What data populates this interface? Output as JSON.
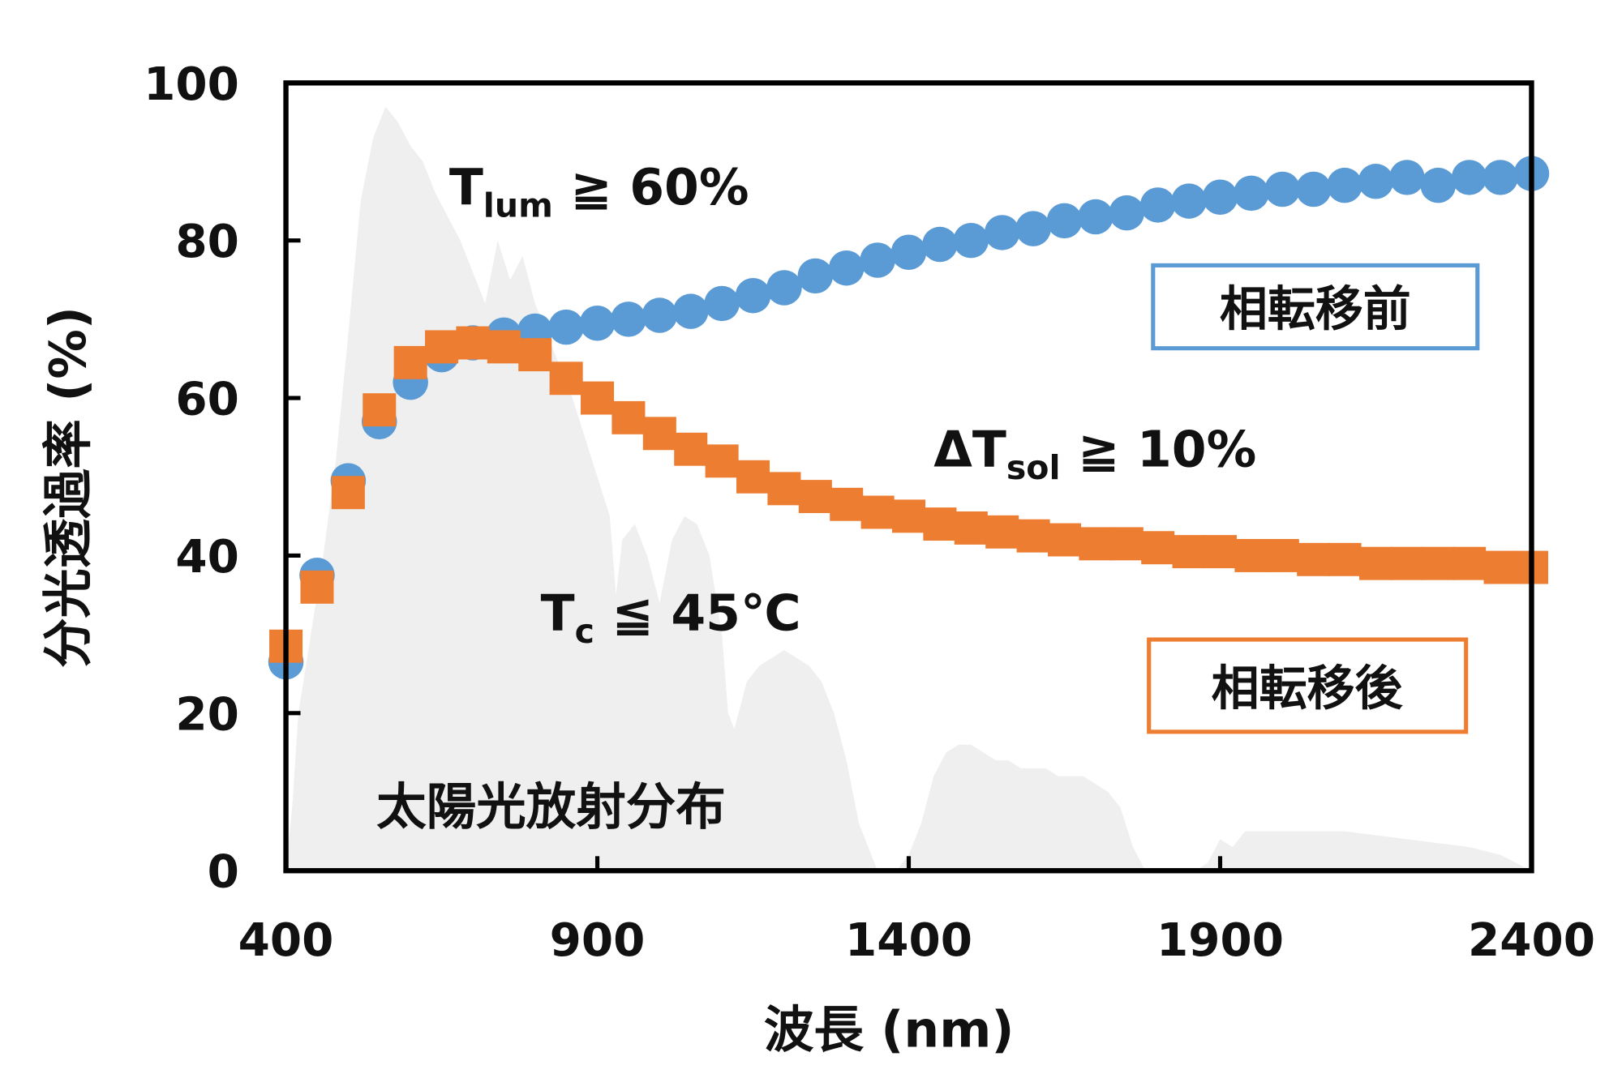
{
  "chart_data": {
    "type": "scatter",
    "xlabel": "波長 (nm)",
    "ylabel": "分光透過率 (%)",
    "xlim": [
      400,
      2400
    ],
    "ylim": [
      0,
      100
    ],
    "xticks": [
      400,
      900,
      1400,
      1900,
      2400
    ],
    "yticks": [
      0,
      20,
      40,
      60,
      80,
      100
    ],
    "grid": false,
    "colors": {
      "before": "#5b9bd5",
      "after": "#ed7d31",
      "solar": "#efefef"
    },
    "x": [
      400,
      450,
      500,
      550,
      600,
      650,
      700,
      750,
      800,
      850,
      900,
      950,
      1000,
      1050,
      1100,
      1150,
      1200,
      1250,
      1300,
      1350,
      1400,
      1450,
      1500,
      1550,
      1600,
      1650,
      1700,
      1750,
      1800,
      1850,
      1900,
      1950,
      2000,
      2050,
      2100,
      2150,
      2200,
      2250,
      2300,
      2350,
      2400
    ],
    "series": [
      {
        "name": "相転移前",
        "marker": "circle",
        "color": "#5b9bd5",
        "values": [
          26.5,
          37.5,
          49.5,
          57,
          62,
          65.5,
          67,
          68,
          68.5,
          69,
          69.5,
          70,
          70.5,
          71,
          72,
          73,
          74,
          75.5,
          76.5,
          77.5,
          78.5,
          79.5,
          80,
          81,
          81.5,
          82.5,
          83,
          83.5,
          84.5,
          85,
          85.5,
          86,
          86.5,
          86.5,
          87,
          87.5,
          88,
          87,
          88,
          88,
          88.5
        ]
      },
      {
        "name": "相転移後",
        "marker": "square",
        "color": "#ed7d31",
        "values": [
          28.5,
          36,
          48,
          58.5,
          64.5,
          66.5,
          67,
          66.5,
          65.5,
          62.5,
          60,
          57.5,
          55.5,
          53.5,
          52,
          50,
          48.5,
          47.5,
          46.5,
          45.5,
          45,
          44,
          43.5,
          43,
          42.5,
          42,
          41.5,
          41.5,
          41,
          40.5,
          40.5,
          40,
          40,
          39.5,
          39.5,
          39,
          39,
          39,
          39,
          38.5,
          38.5
        ]
      }
    ],
    "background_area": {
      "name": "太陽光放射分布",
      "x": [
        400,
        410,
        420,
        440,
        460,
        480,
        500,
        520,
        540,
        560,
        580,
        600,
        620,
        640,
        660,
        680,
        700,
        720,
        740,
        760,
        780,
        800,
        820,
        840,
        860,
        880,
        900,
        920,
        930,
        940,
        960,
        980,
        1000,
        1020,
        1040,
        1060,
        1080,
        1100,
        1110,
        1120,
        1140,
        1160,
        1180,
        1200,
        1220,
        1240,
        1260,
        1280,
        1300,
        1320,
        1340,
        1350,
        1360,
        1380,
        1400,
        1420,
        1440,
        1460,
        1480,
        1500,
        1520,
        1540,
        1560,
        1580,
        1600,
        1620,
        1640,
        1660,
        1680,
        1700,
        1720,
        1740,
        1760,
        1780,
        1800,
        1820,
        1840,
        1860,
        1880,
        1900,
        1920,
        1940,
        1960,
        1980,
        2000,
        2050,
        2100,
        2150,
        2200,
        2250,
        2300,
        2350,
        2400
      ],
      "values": [
        0,
        8,
        20,
        30,
        40,
        52,
        68,
        85,
        93,
        97,
        95,
        92,
        90,
        86,
        83,
        80,
        76,
        72,
        80,
        75,
        78,
        72,
        68,
        64,
        60,
        55,
        50,
        45,
        35,
        42,
        44,
        40,
        34,
        42,
        45,
        44,
        40,
        30,
        20,
        18,
        24,
        26,
        27,
        28,
        27,
        26,
        24,
        20,
        14,
        6,
        2,
        0,
        0,
        0,
        2,
        6,
        12,
        15,
        16,
        16,
        15,
        14,
        14,
        13,
        13,
        13,
        12,
        12,
        12,
        11,
        10,
        8,
        3,
        0,
        0,
        0,
        0,
        0,
        1,
        4,
        3,
        5,
        5,
        5,
        5,
        5,
        5,
        4.5,
        4,
        3.5,
        3,
        2,
        0
      ]
    },
    "annotations": {
      "tlum": {
        "main": "T",
        "sub": "lum",
        "rest": " ≧ 60%"
      },
      "dtsol": {
        "main": "ΔT",
        "sub": "sol",
        "rest": " ≧ 10%"
      },
      "tc": {
        "main": "T",
        "sub": "c",
        "rest": " ≦ 45℃"
      }
    },
    "legend": {
      "before": "相転移前",
      "after": "相転移後",
      "placement": "right"
    }
  }
}
